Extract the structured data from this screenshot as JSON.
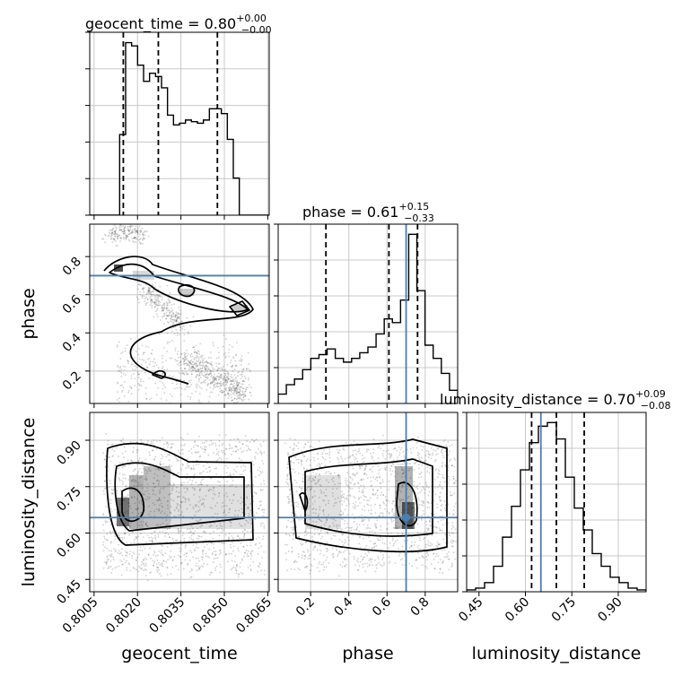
{
  "chart_data": {
    "type": "corner",
    "parameters": [
      "geocent_time",
      "phase",
      "luminosity_distance"
    ],
    "truth": {
      "phase": 0.7,
      "luminosity_distance": 0.65
    },
    "grid": true,
    "diagonal": [
      {
        "name": "geocent_time",
        "title_main": "geocent_time = 0.80",
        "title_up": "+0.00",
        "title_down": "−0.00",
        "xlim": [
          0.80035,
          0.80655
        ],
        "xticks": [
          0.8005,
          0.802,
          0.8035,
          0.805,
          0.8065
        ],
        "xtick_labels": [
          "0.8005",
          "0.8020",
          "0.8035",
          "0.8050",
          "0.8065"
        ],
        "quantile_lines": [
          0.80151,
          0.80272,
          0.80476
        ],
        "truth": null,
        "hist_heights": [
          0.0,
          0.0,
          0.0,
          0.0,
          0.0,
          0.5,
          1.07,
          1.05,
          0.93,
          0.83,
          0.88,
          0.86,
          0.79,
          0.62,
          0.56,
          0.57,
          0.59,
          0.58,
          0.57,
          0.59,
          0.66,
          0.66,
          0.63,
          0.47,
          0.23,
          0.0,
          0.0,
          0.0,
          0.0,
          0.0
        ]
      },
      {
        "name": "phase",
        "title_main": "phase = 0.61",
        "title_up": "+0.15",
        "title_down": "−0.33",
        "xlim": [
          0.03,
          0.97
        ],
        "xticks": [
          0.2,
          0.4,
          0.6,
          0.8
        ],
        "xtick_labels": [
          "0.2",
          "0.4",
          "0.6",
          "0.8"
        ],
        "quantile_lines": [
          0.28,
          0.61,
          0.76
        ],
        "truth": 0.7,
        "hist_heights": [
          0.05,
          0.1,
          0.13,
          0.18,
          0.24,
          0.26,
          0.29,
          0.24,
          0.22,
          0.24,
          0.27,
          0.3,
          0.37,
          0.45,
          0.43,
          0.55,
          0.9,
          0.6,
          0.31,
          0.24,
          0.16,
          0.07
        ]
      },
      {
        "name": "luminosity_distance",
        "title_main": "luminosity_distance = 0.70",
        "title_up": "+0.09",
        "title_down": "−0.08",
        "xlim": [
          0.41,
          0.99
        ],
        "xticks": [
          0.45,
          0.6,
          0.75,
          0.9
        ],
        "xtick_labels": [
          "0.45",
          "0.60",
          "0.75",
          "0.90"
        ],
        "quantile_lines": [
          0.62,
          0.7,
          0.79
        ],
        "truth": 0.65,
        "hist_heights": [
          0.01,
          0.02,
          0.05,
          0.14,
          0.3,
          0.47,
          0.67,
          0.82,
          0.91,
          0.93,
          0.84,
          0.63,
          0.46,
          0.34,
          0.21,
          0.14,
          0.08,
          0.05,
          0.02,
          0.01
        ]
      }
    ],
    "off_diagonal": [
      {
        "x": "geocent_time",
        "y": "phase",
        "ylim": [
          0.03,
          0.97
        ],
        "yticks": [
          0.2,
          0.4,
          0.6,
          0.8
        ],
        "ytick_labels": [
          "0.2",
          "0.4",
          "0.6",
          "0.8"
        ],
        "truth_y": 0.7
      },
      {
        "x": "geocent_time",
        "y": "luminosity_distance",
        "ylim": [
          0.41,
          0.99
        ],
        "yticks": [
          0.45,
          0.6,
          0.75,
          0.9
        ],
        "ytick_labels": [
          "0.45",
          "0.60",
          "0.75",
          "0.90"
        ],
        "truth_y": 0.65
      },
      {
        "x": "phase",
        "y": "luminosity_distance",
        "ylim": [
          0.41,
          0.99
        ],
        "yticks": [
          0.45,
          0.6,
          0.75,
          0.9
        ],
        "ytick_labels": [
          "0.45",
          "0.60",
          "0.75",
          "0.90"
        ],
        "truth_x": 0.7,
        "truth_y": 0.65
      }
    ],
    "xlabel_bottom": [
      "geocent_time",
      "phase",
      "luminosity_distance"
    ],
    "ylabel_left": [
      "phase",
      "luminosity_distance"
    ]
  },
  "colors": {
    "truth": "#4a7fb5",
    "hist": "#000000",
    "grid": "#c8c8c8",
    "scatter": "#555555"
  }
}
